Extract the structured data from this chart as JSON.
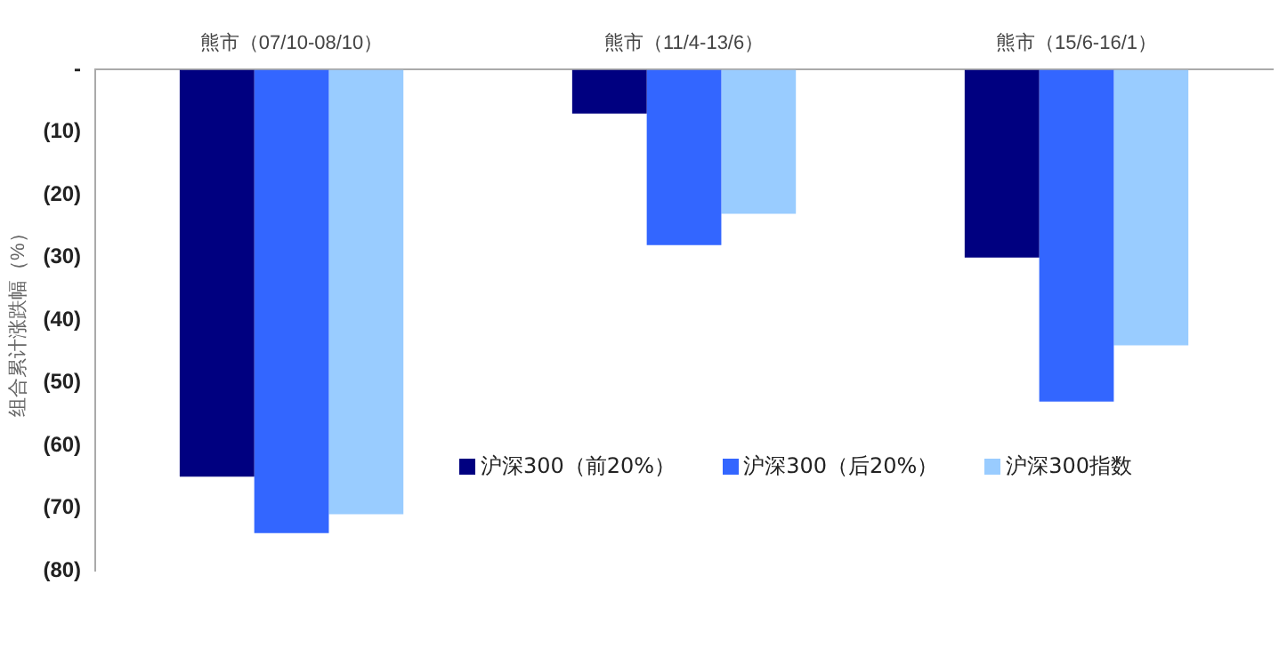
{
  "chart_data": {
    "type": "bar",
    "ylabel": "组合累计涨跌幅（%）",
    "categories": [
      "熊市（07/10-08/10）",
      "熊市（11/4-13/6）",
      "熊市（15/6-16/1）"
    ],
    "series": [
      {
        "name": "沪深300（前20%）",
        "color": "#000080",
        "values": [
          -65,
          -7,
          -30
        ]
      },
      {
        "name": "沪深300（后20%）",
        "color": "#3366ff",
        "values": [
          -74,
          -28,
          -53
        ]
      },
      {
        "name": "沪深300指数",
        "color": "#99ccff",
        "values": [
          -71,
          -23,
          -44
        ]
      }
    ],
    "ylim": [
      -80,
      0
    ],
    "yticks": [
      {
        "value": 0,
        "label": "-"
      },
      {
        "value": -10,
        "label": "(10)"
      },
      {
        "value": -20,
        "label": "(20)"
      },
      {
        "value": -30,
        "label": "(30)"
      },
      {
        "value": -40,
        "label": "(40)"
      },
      {
        "value": -50,
        "label": "(50)"
      },
      {
        "value": -60,
        "label": "(60)"
      },
      {
        "value": -70,
        "label": "(70)"
      },
      {
        "value": -80,
        "label": "(80)"
      }
    ],
    "grid": false,
    "legend": "right"
  }
}
